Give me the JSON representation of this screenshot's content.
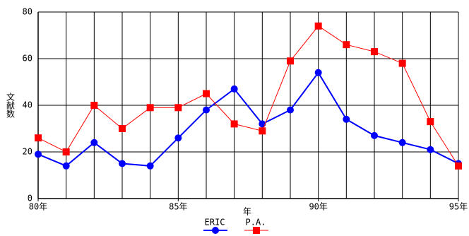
{
  "chart_data": {
    "type": "line",
    "y_label": "文献数",
    "x_label": "年",
    "x": [
      80,
      81,
      82,
      83,
      84,
      85,
      86,
      87,
      88,
      89,
      90,
      91,
      92,
      93,
      94,
      95
    ],
    "series": [
      {
        "name": "ERIC",
        "color": "#0000ff",
        "marker": "circle",
        "values": [
          19,
          14,
          24,
          15,
          14,
          26,
          38,
          47,
          32,
          38,
          54,
          34,
          27,
          24,
          21,
          15
        ]
      },
      {
        "name": "P.A.",
        "color": "#ff0000",
        "marker": "square",
        "values": [
          26,
          20,
          40,
          30,
          39,
          39,
          45,
          32,
          29,
          59,
          74,
          66,
          63,
          58,
          33,
          14
        ]
      }
    ],
    "xlim": [
      80,
      95
    ],
    "xticks": [
      {
        "value": 80,
        "label": "80年"
      },
      {
        "value": 85,
        "label": "85年"
      },
      {
        "value": 90,
        "label": "90年"
      },
      {
        "value": 95,
        "label": "95年"
      }
    ],
    "ylim": [
      0,
      80
    ],
    "yticks": [
      0,
      20,
      40,
      60,
      80
    ],
    "grid": true
  }
}
